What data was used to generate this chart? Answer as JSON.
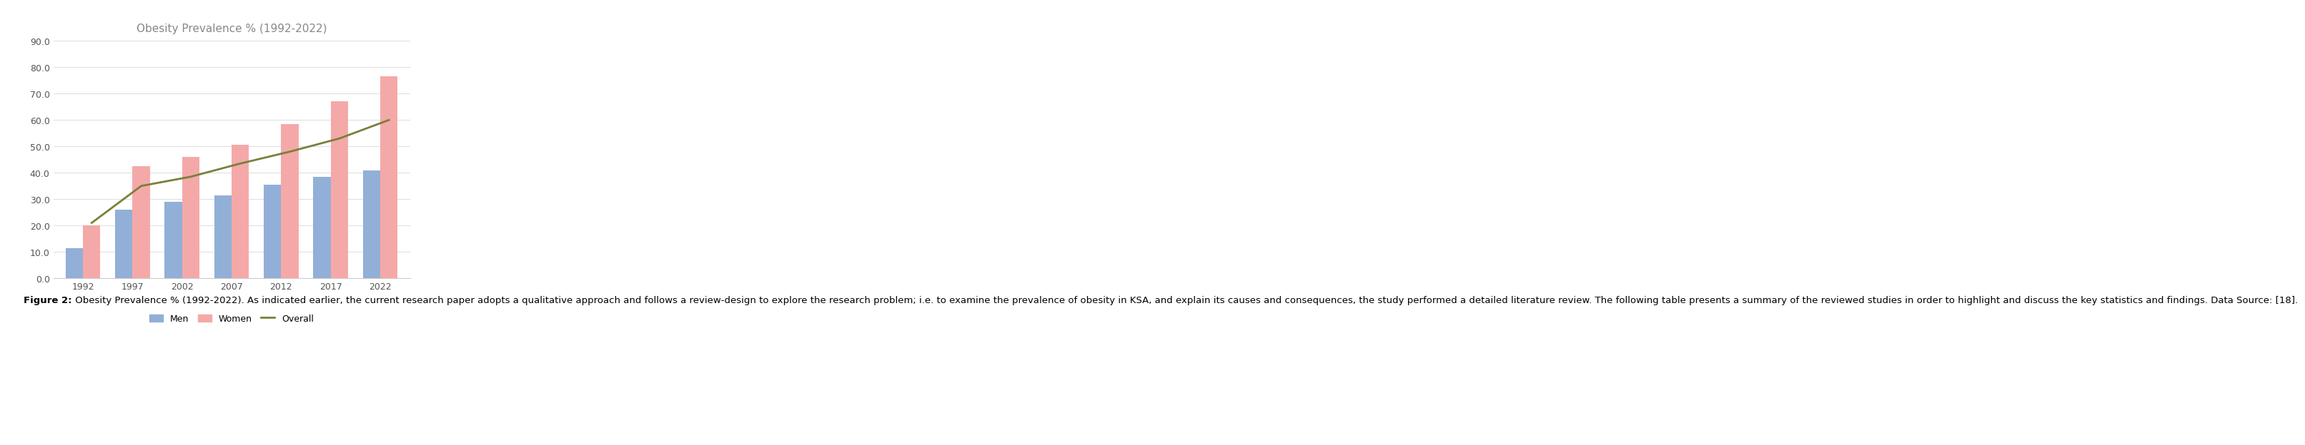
{
  "title": "Obesity Prevalence % (1992-2022)",
  "years": [
    1992,
    1997,
    2002,
    2007,
    2012,
    2017,
    2022
  ],
  "men": [
    11.5,
    26.0,
    29.0,
    31.5,
    35.5,
    38.5,
    41.0
  ],
  "women": [
    20.0,
    42.5,
    46.0,
    50.5,
    58.5,
    67.0,
    76.5
  ],
  "overall": [
    21.0,
    35.0,
    38.5,
    43.5,
    48.0,
    53.0,
    60.0
  ],
  "men_color": "#92afd7",
  "women_color": "#f4a9a8",
  "overall_color": "#7a7f3b",
  "ylim": [
    0,
    90
  ],
  "yticks": [
    0.0,
    10.0,
    20.0,
    30.0,
    40.0,
    50.0,
    60.0,
    70.0,
    80.0,
    90.0
  ],
  "bar_width": 0.35,
  "legend_men": "Men",
  "legend_women": "Women",
  "legend_overall": "Overall",
  "figure_caption_bold": "Figure 2:",
  "figure_caption_normal": " Obesity Prevalence % (1992-2022). As indicated earlier, the current research paper adopts a qualitative approach and follows a review-design to explore the research problem; i.e. to examine the prevalence of obesity in KSA, and explain its causes and consequences, the study performed a detailed literature review. The following table presents a summary of the reviewed studies in order to highlight and discuss the key statistics and findings. Data Source: [18].",
  "border_color": "#e87a7a",
  "grid_color": "#e0e0e0",
  "title_color": "#888888",
  "tick_color": "#555555",
  "spine_color": "#cccccc"
}
